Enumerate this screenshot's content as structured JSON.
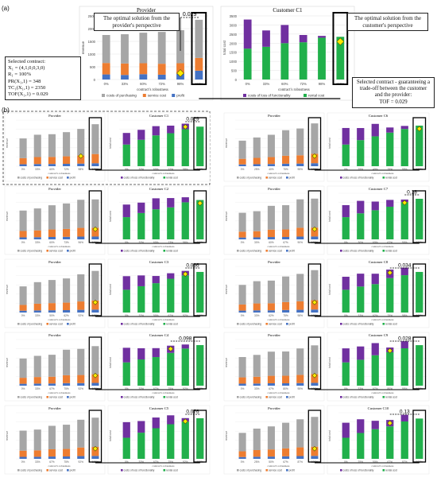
{
  "figure": {
    "panel_a_label": "(a)",
    "panel_b_label": "(b)",
    "callout_provider": "The optimal solution from the provider's perspective",
    "callout_customer": "The optimal solution from the customer's perspective",
    "callout_tradeoff": "Selected contract - guaranteeing a trade-off between the customer and the provider:",
    "callout_tradeoff_tof": "TOF = 0.029",
    "contract_title": "Selected contract:",
    "contract_lines": [
      "X₁ = (4,1,0,0,3,0)",
      "R₁ = 100%",
      "PR(X₁,1) = 348",
      "TC₁(X₁,1) = 2350",
      "TOF(X₁,1) = 0.029"
    ]
  },
  "colors": {
    "purchasing": "#a6a6a6",
    "service": "#ed7d31",
    "profit": "#4472c4",
    "loss": "#7030a0",
    "rental": "#21b04b",
    "diamond": "#ffea00"
  },
  "chart_data": {
    "type": "bar",
    "categories": [
      "0%",
      "33%",
      "60%",
      "72%",
      "98%",
      "100%"
    ],
    "provider_chart": {
      "title": "Provider",
      "ylabel": "revenue",
      "xlabel": "contract's robustness",
      "ylim": [
        0,
        2500
      ],
      "yticks": [
        0,
        500,
        1000,
        1500,
        2000,
        2500
      ],
      "legend": [
        "costs of purchasing",
        "service cost",
        "profit"
      ],
      "series": [
        {
          "name": "costs of purchasing",
          "values": [
            1100,
            1150,
            1200,
            1250,
            1300,
            1500
          ]
        },
        {
          "name": "service cost",
          "values": [
            450,
            450,
            430,
            430,
            420,
            500
          ]
        },
        {
          "name": "profit",
          "values": [
            200,
            180,
            210,
            190,
            220,
            348
          ]
        }
      ]
    },
    "customer_chart": {
      "title": "Customer C1",
      "ylabel": "total cost",
      "xlabel": "contract's robustness",
      "ylim": [
        0,
        3500
      ],
      "yticks": [
        0,
        500,
        1000,
        1500,
        2000,
        2500,
        3000,
        3500
      ],
      "legend": [
        "costs of loss of functionality",
        "rental cost"
      ],
      "series": [
        {
          "name": "costs of loss of functionality",
          "values": [
            1600,
            900,
            1000,
            400,
            100,
            0
          ]
        },
        {
          "name": "rental cost",
          "values": [
            1700,
            1800,
            2000,
            2050,
            2300,
            2350
          ]
        }
      ]
    },
    "annotation_top": "0.029",
    "small_panels": [
      {
        "provider": "Provider",
        "customer": "Customer C1",
        "cats": [
          "0%",
          "33%",
          "60%",
          "72%",
          "98%",
          "100%"
        ],
        "tof": "0.029",
        "pp": 4,
        "cp": 4
      },
      {
        "provider": "Provider",
        "customer": "Customer C2",
        "cats": [
          "0%",
          "33%",
          "60%",
          "73%",
          "96%",
          "100%"
        ],
        "tof": "",
        "pp": 5,
        "cp": 5
      },
      {
        "provider": "Provider",
        "customer": "Customer C3",
        "cats": [
          "0%",
          "33%",
          "50%",
          "62%",
          "92%",
          "100%"
        ],
        "tof": "0.036",
        "pp": 5,
        "cp": 4
      },
      {
        "provider": "Provider",
        "customer": "Customer C4",
        "cats": [
          "0%",
          "33%",
          "67%",
          "75%",
          "92%",
          "100%"
        ],
        "tof": "0.098",
        "pp": 5,
        "cp": 3
      },
      {
        "provider": "Provider",
        "customer": "Customer C5",
        "cats": [
          "0%",
          "33%",
          "67%",
          "75%",
          "92%",
          "100%"
        ],
        "tof": "0.076",
        "pp": 5,
        "cp": 4
      },
      {
        "provider": "Provider",
        "customer": "Customer C6",
        "cats": [
          "0%",
          "25%",
          "40%",
          "75%",
          "95%",
          "100%"
        ],
        "tof": "",
        "pp": 5,
        "cp": 5
      },
      {
        "provider": "Provider",
        "customer": "Customer C7",
        "cats": [
          "0%",
          "30%",
          "60%",
          "67%",
          "90%",
          "100%"
        ],
        "tof": "0.18",
        "pp": 5,
        "cp": 4
      },
      {
        "provider": "Provider",
        "customer": "Customer C8",
        "cats": [
          "0%",
          "33%",
          "62%",
          "75%",
          "98%",
          "100%"
        ],
        "tof": "0.034",
        "pp": 5,
        "cp": 3
      },
      {
        "provider": "Provider",
        "customer": "Customer C9",
        "cats": [
          "0%",
          "33%",
          "67%",
          "80%",
          "95%",
          "100%"
        ],
        "tof": "0.028",
        "pp": 5,
        "cp": 3
      },
      {
        "provider": "Provider",
        "customer": "Customer C10",
        "cats": [
          "0%",
          "25%",
          "50%",
          "67%",
          "87%",
          "100%"
        ],
        "tof": "0.13",
        "pp": 5,
        "cp": 3
      }
    ],
    "small_legend_provider": [
      "costs of purchasing",
      "service cost",
      "profit"
    ],
    "small_legend_customer": [
      "costs of loss of functionality",
      "rental cost"
    ],
    "small_xlabel": "contract's robustness",
    "small_ylabel_provider": "revenue",
    "small_ylabel_customer": "total cost"
  }
}
